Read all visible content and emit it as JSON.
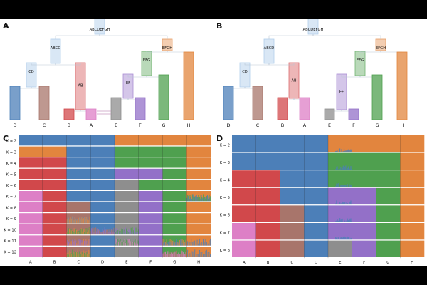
{
  "panels": {
    "a": "A",
    "b": "B",
    "c": "C",
    "d": "D"
  },
  "colors": {
    "D": "#4C7FB8",
    "C": "#A8756B",
    "B": "#D1484B",
    "A": "#DD7FC6",
    "E": "#8E8E8E",
    "F": "#9370C8",
    "G": "#4FA04F",
    "H": "#E2853E"
  },
  "tree_a": {
    "nodes": {
      "ABCDEFGH": "ABCDEFGH",
      "ABCD": "ABCD",
      "EFGH": "EFGH",
      "CD": "CD",
      "AB": "AB",
      "EFG": "EFG",
      "EF": "EF"
    },
    "leaves": [
      "D",
      "C",
      "B",
      "A",
      "E",
      "F",
      "G",
      "H"
    ]
  },
  "tree_b": {
    "nodes": {
      "ABCDEFGH": "ABCDEFGH",
      "ABCD": "ABCD",
      "EFGH": "EFGH",
      "CD": "CD",
      "AB": "AB",
      "EFG": "EFG",
      "EF": "EF"
    },
    "leaves": [
      "D",
      "C",
      "B",
      "A",
      "E",
      "F",
      "G",
      "H"
    ]
  },
  "panel_c": {
    "k_labels": [
      "K = 2",
      "K = 3",
      "K = 4",
      "K = 5",
      "K = 6",
      "K = 7",
      "K = 8",
      "K = 9",
      "K = 10",
      "K = 11",
      "K = 12"
    ],
    "populations": [
      "A",
      "B",
      "C",
      "D",
      "E",
      "F",
      "G",
      "H"
    ]
  },
  "panel_d": {
    "k_labels": [
      "K = 2",
      "K = 3",
      "K = 4",
      "K = 5",
      "K = 6",
      "K = 7",
      "K = 8"
    ],
    "populations": [
      "A",
      "B",
      "C",
      "D",
      "E",
      "F",
      "G",
      "H"
    ]
  }
}
